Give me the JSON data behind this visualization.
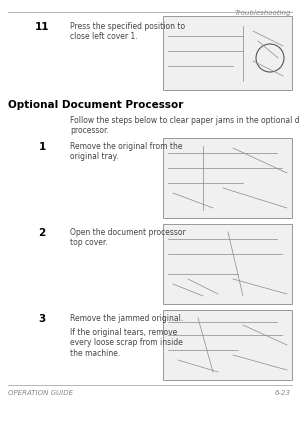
{
  "bg_color": "#ffffff",
  "header_text": "Troubleshooting",
  "footer_left": "OPERATION GUIDE",
  "footer_right": "6-23",
  "section_title": "Optional Document Processor",
  "intro_text": "Follow the steps below to clear paper jams in the optional document\nprocessor.",
  "step11_num": "11",
  "step11_text": "Press the specified position to\nclose left cover 1.",
  "step1_num": "1",
  "step1_text": "Remove the original from the\noriginal tray.",
  "step2_num": "2",
  "step2_text": "Open the document processor\ntop cover.",
  "step3_num": "3",
  "step3_text": "Remove the jammed original.",
  "step3_subtext": "If the original tears, remove\nevery loose scrap from inside\nthe machine.",
  "text_color": "#444444",
  "num_color": "#000000",
  "title_color": "#000000",
  "box_edge": "#999999",
  "box_face": "#f0f0f0",
  "rule_color": "#aaaaaa",
  "header_color": "#888888",
  "footer_color": "#888888"
}
